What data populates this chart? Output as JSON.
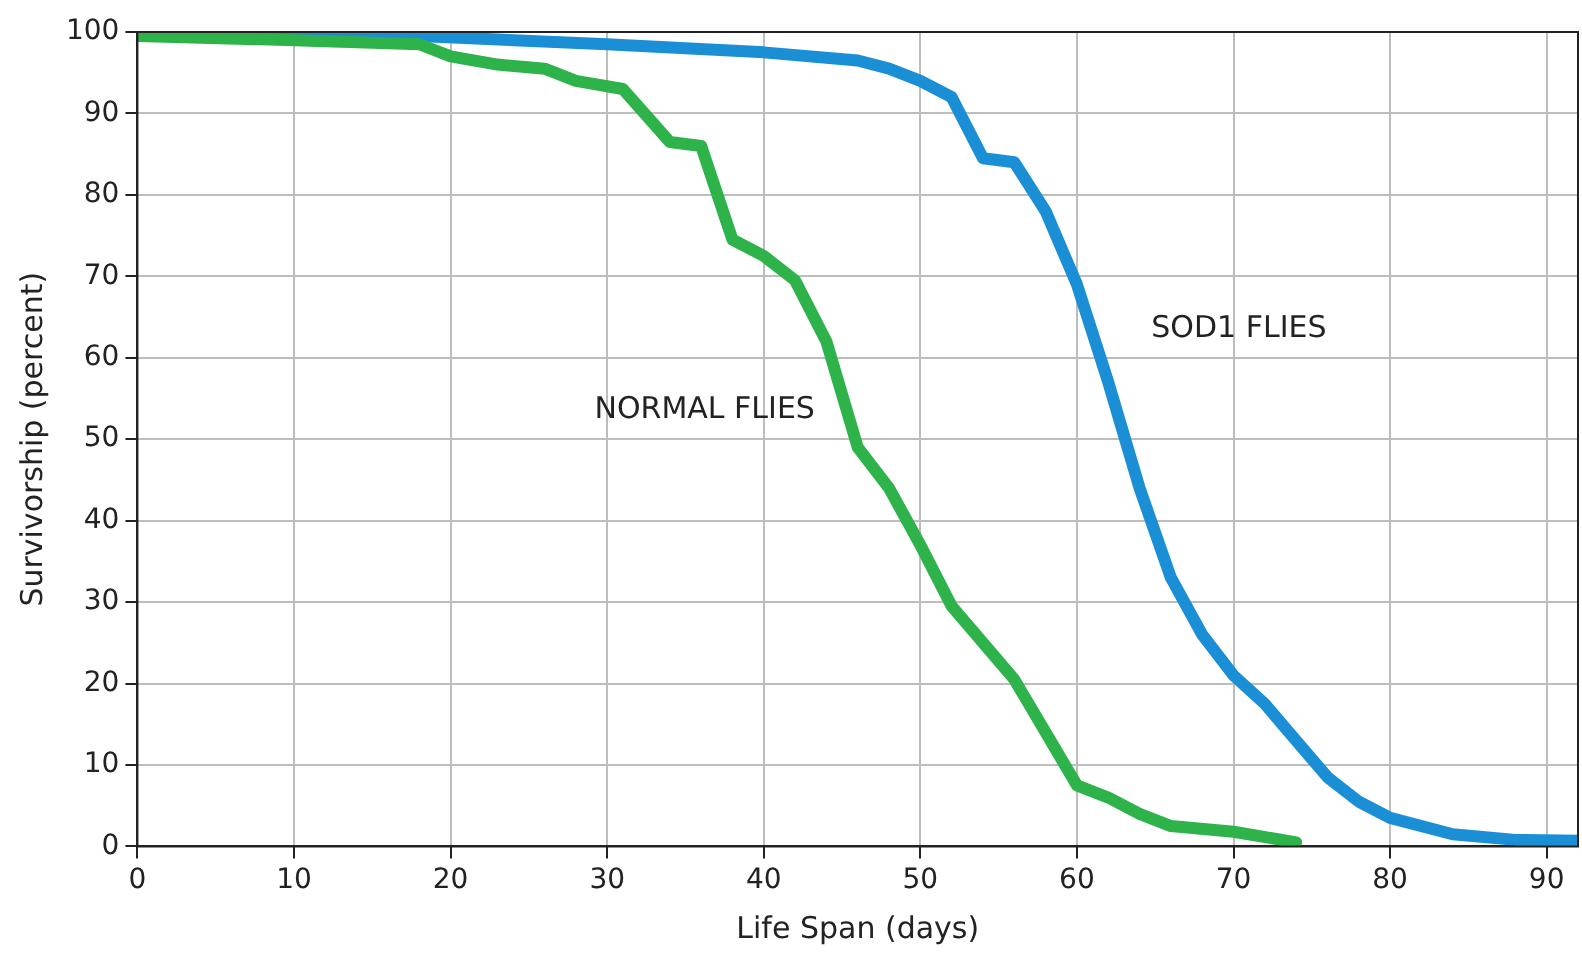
{
  "chart_data": {
    "type": "line",
    "xlabel": "Life Span (days)",
    "ylabel": "Survivorship (percent)",
    "xlim": [
      0,
      92
    ],
    "xticks": [
      0,
      10,
      20,
      30,
      40,
      50,
      60,
      70,
      80,
      90
    ],
    "ylim": [
      0,
      100
    ],
    "yticks": [
      0,
      10,
      20,
      30,
      40,
      50,
      60,
      70,
      80,
      90,
      100
    ],
    "grid": true,
    "legend": false,
    "marker": "none",
    "line_style": "solid",
    "series": [
      {
        "name": "NORMAL FLIES",
        "color": "#2db34a",
        "x": [
          0,
          10,
          18,
          20,
          23,
          26,
          28,
          31,
          34,
          36,
          38,
          40,
          42,
          44,
          46,
          48,
          50,
          52,
          56,
          60,
          62,
          64,
          66,
          70,
          74
        ],
        "values": [
          99.5,
          99,
          98.5,
          97,
          96,
          95.5,
          94,
          93,
          86.5,
          86,
          74.5,
          72.5,
          69.5,
          62,
          49,
          44,
          37,
          29.5,
          20.5,
          7.5,
          6,
          4,
          2.5,
          1.8,
          0.5
        ]
      },
      {
        "name": "SOD1 FLIES",
        "color": "#1a8fd6",
        "x": [
          0,
          18,
          30,
          40,
          46,
          48,
          50,
          52,
          54,
          56,
          58,
          60,
          62,
          64,
          66,
          68,
          70,
          72,
          74,
          76,
          78,
          80,
          84,
          88,
          92
        ],
        "values": [
          100,
          99.5,
          98.5,
          97.5,
          96.5,
          95.5,
          94,
          92,
          84.5,
          84,
          78,
          69,
          57,
          44,
          33,
          26,
          21,
          17.5,
          13,
          8.5,
          5.5,
          3.5,
          1.5,
          0.8,
          0.7
        ]
      }
    ]
  }
}
